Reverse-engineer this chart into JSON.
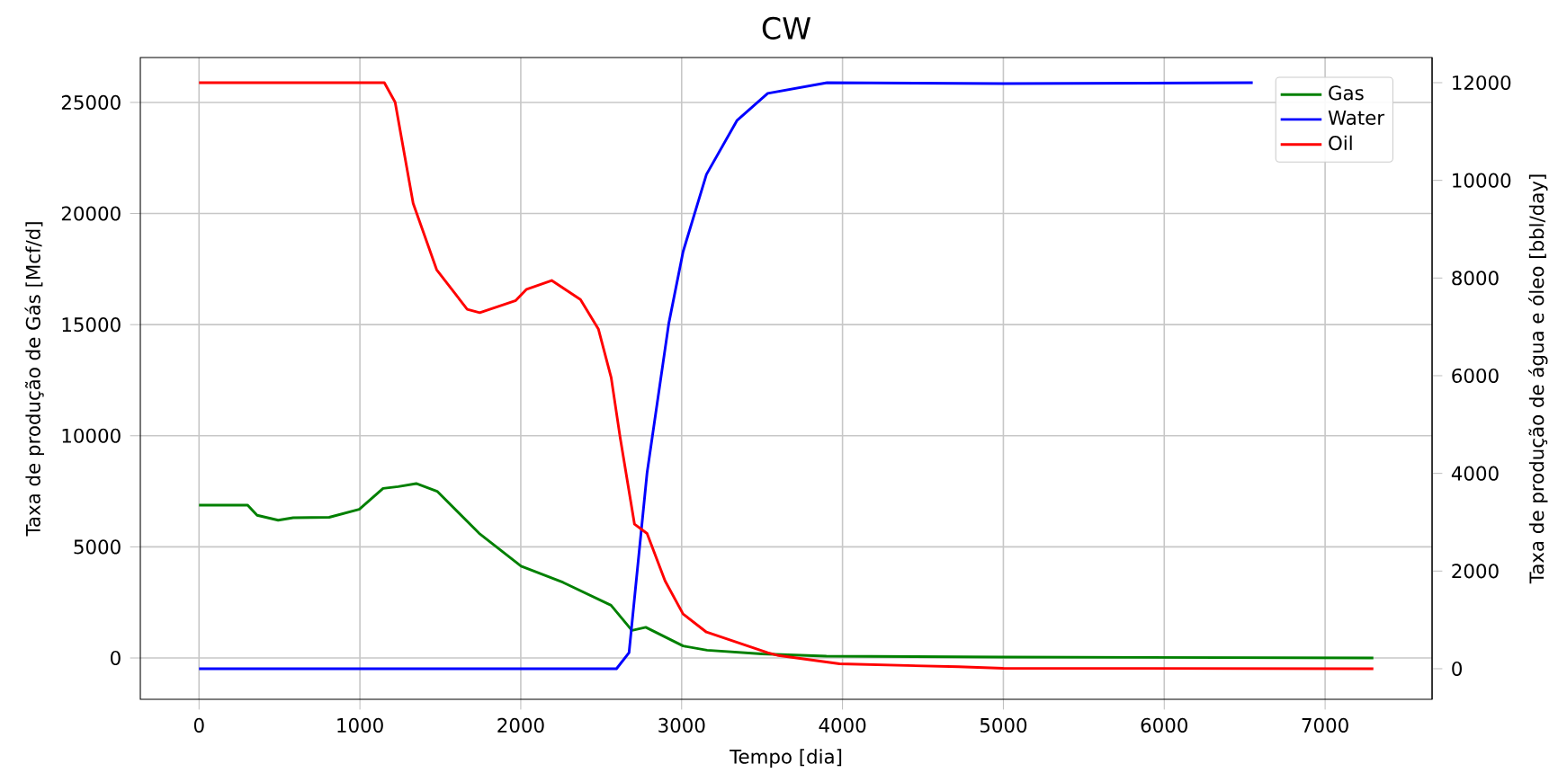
{
  "chart_data": {
    "type": "line",
    "title": "CW",
    "xlabel": "Tempo [dia]",
    "ylabel": "Taxa de produção de Gás [Mcf/d]",
    "y2label": "Taxa de produção de água e óleo [bbl/day]",
    "xlim": [
      -365,
      7665
    ],
    "xticks": [
      0,
      1000,
      2000,
      3000,
      4000,
      5000,
      6000,
      7000
    ],
    "ylim": [
      -1860,
      27020
    ],
    "yticks": [
      0,
      5000,
      10000,
      15000,
      20000,
      25000
    ],
    "y2lim": [
      -626,
      12515
    ],
    "y2ticks": [
      0,
      2000,
      4000,
      6000,
      8000,
      10000,
      12000
    ],
    "grid": true,
    "legend": "top right",
    "series": [
      {
        "name": "Gas",
        "color": "#008000",
        "x": [
          0,
          302,
          361,
          492,
          585,
          809,
          996,
          1144,
          1238,
          1350,
          1480,
          1741,
          2002,
          2263,
          2561,
          2691,
          2777,
          3009,
          3158,
          3500,
          3900,
          5000,
          7300
        ],
        "values": [
          6880,
          6880,
          6420,
          6200,
          6310,
          6330,
          6690,
          7630,
          7710,
          7850,
          7500,
          5610,
          4130,
          3400,
          2370,
          1240,
          1380,
          540,
          350,
          180,
          80,
          40,
          0
        ]
      },
      {
        "name": "Water",
        "color": "#0000ff",
        "axis": "y2",
        "x": [
          0,
          2595,
          2673,
          2785,
          2920,
          3009,
          3154,
          3345,
          3535,
          3904,
          5000,
          6550
        ],
        "values": [
          0,
          0,
          330,
          4010,
          7070,
          8540,
          10120,
          11230,
          11780,
          12000,
          11980,
          12000
        ]
      },
      {
        "name": "Oil",
        "color": "#ff0000",
        "axis": "y2",
        "x": [
          0,
          1152,
          1219,
          1331,
          1477,
          1667,
          1745,
          1969,
          2036,
          2192,
          2371,
          2483,
          2562,
          2617,
          2707,
          2785,
          2897,
          3009,
          3154,
          3535,
          3602,
          3982,
          4720,
          5000,
          7300
        ],
        "values": [
          12000,
          12000,
          11600,
          9530,
          8170,
          7360,
          7290,
          7540,
          7770,
          7950,
          7560,
          6950,
          5960,
          4750,
          2960,
          2770,
          1800,
          1120,
          750,
          330,
          270,
          100,
          40,
          10,
          0
        ]
      }
    ]
  }
}
